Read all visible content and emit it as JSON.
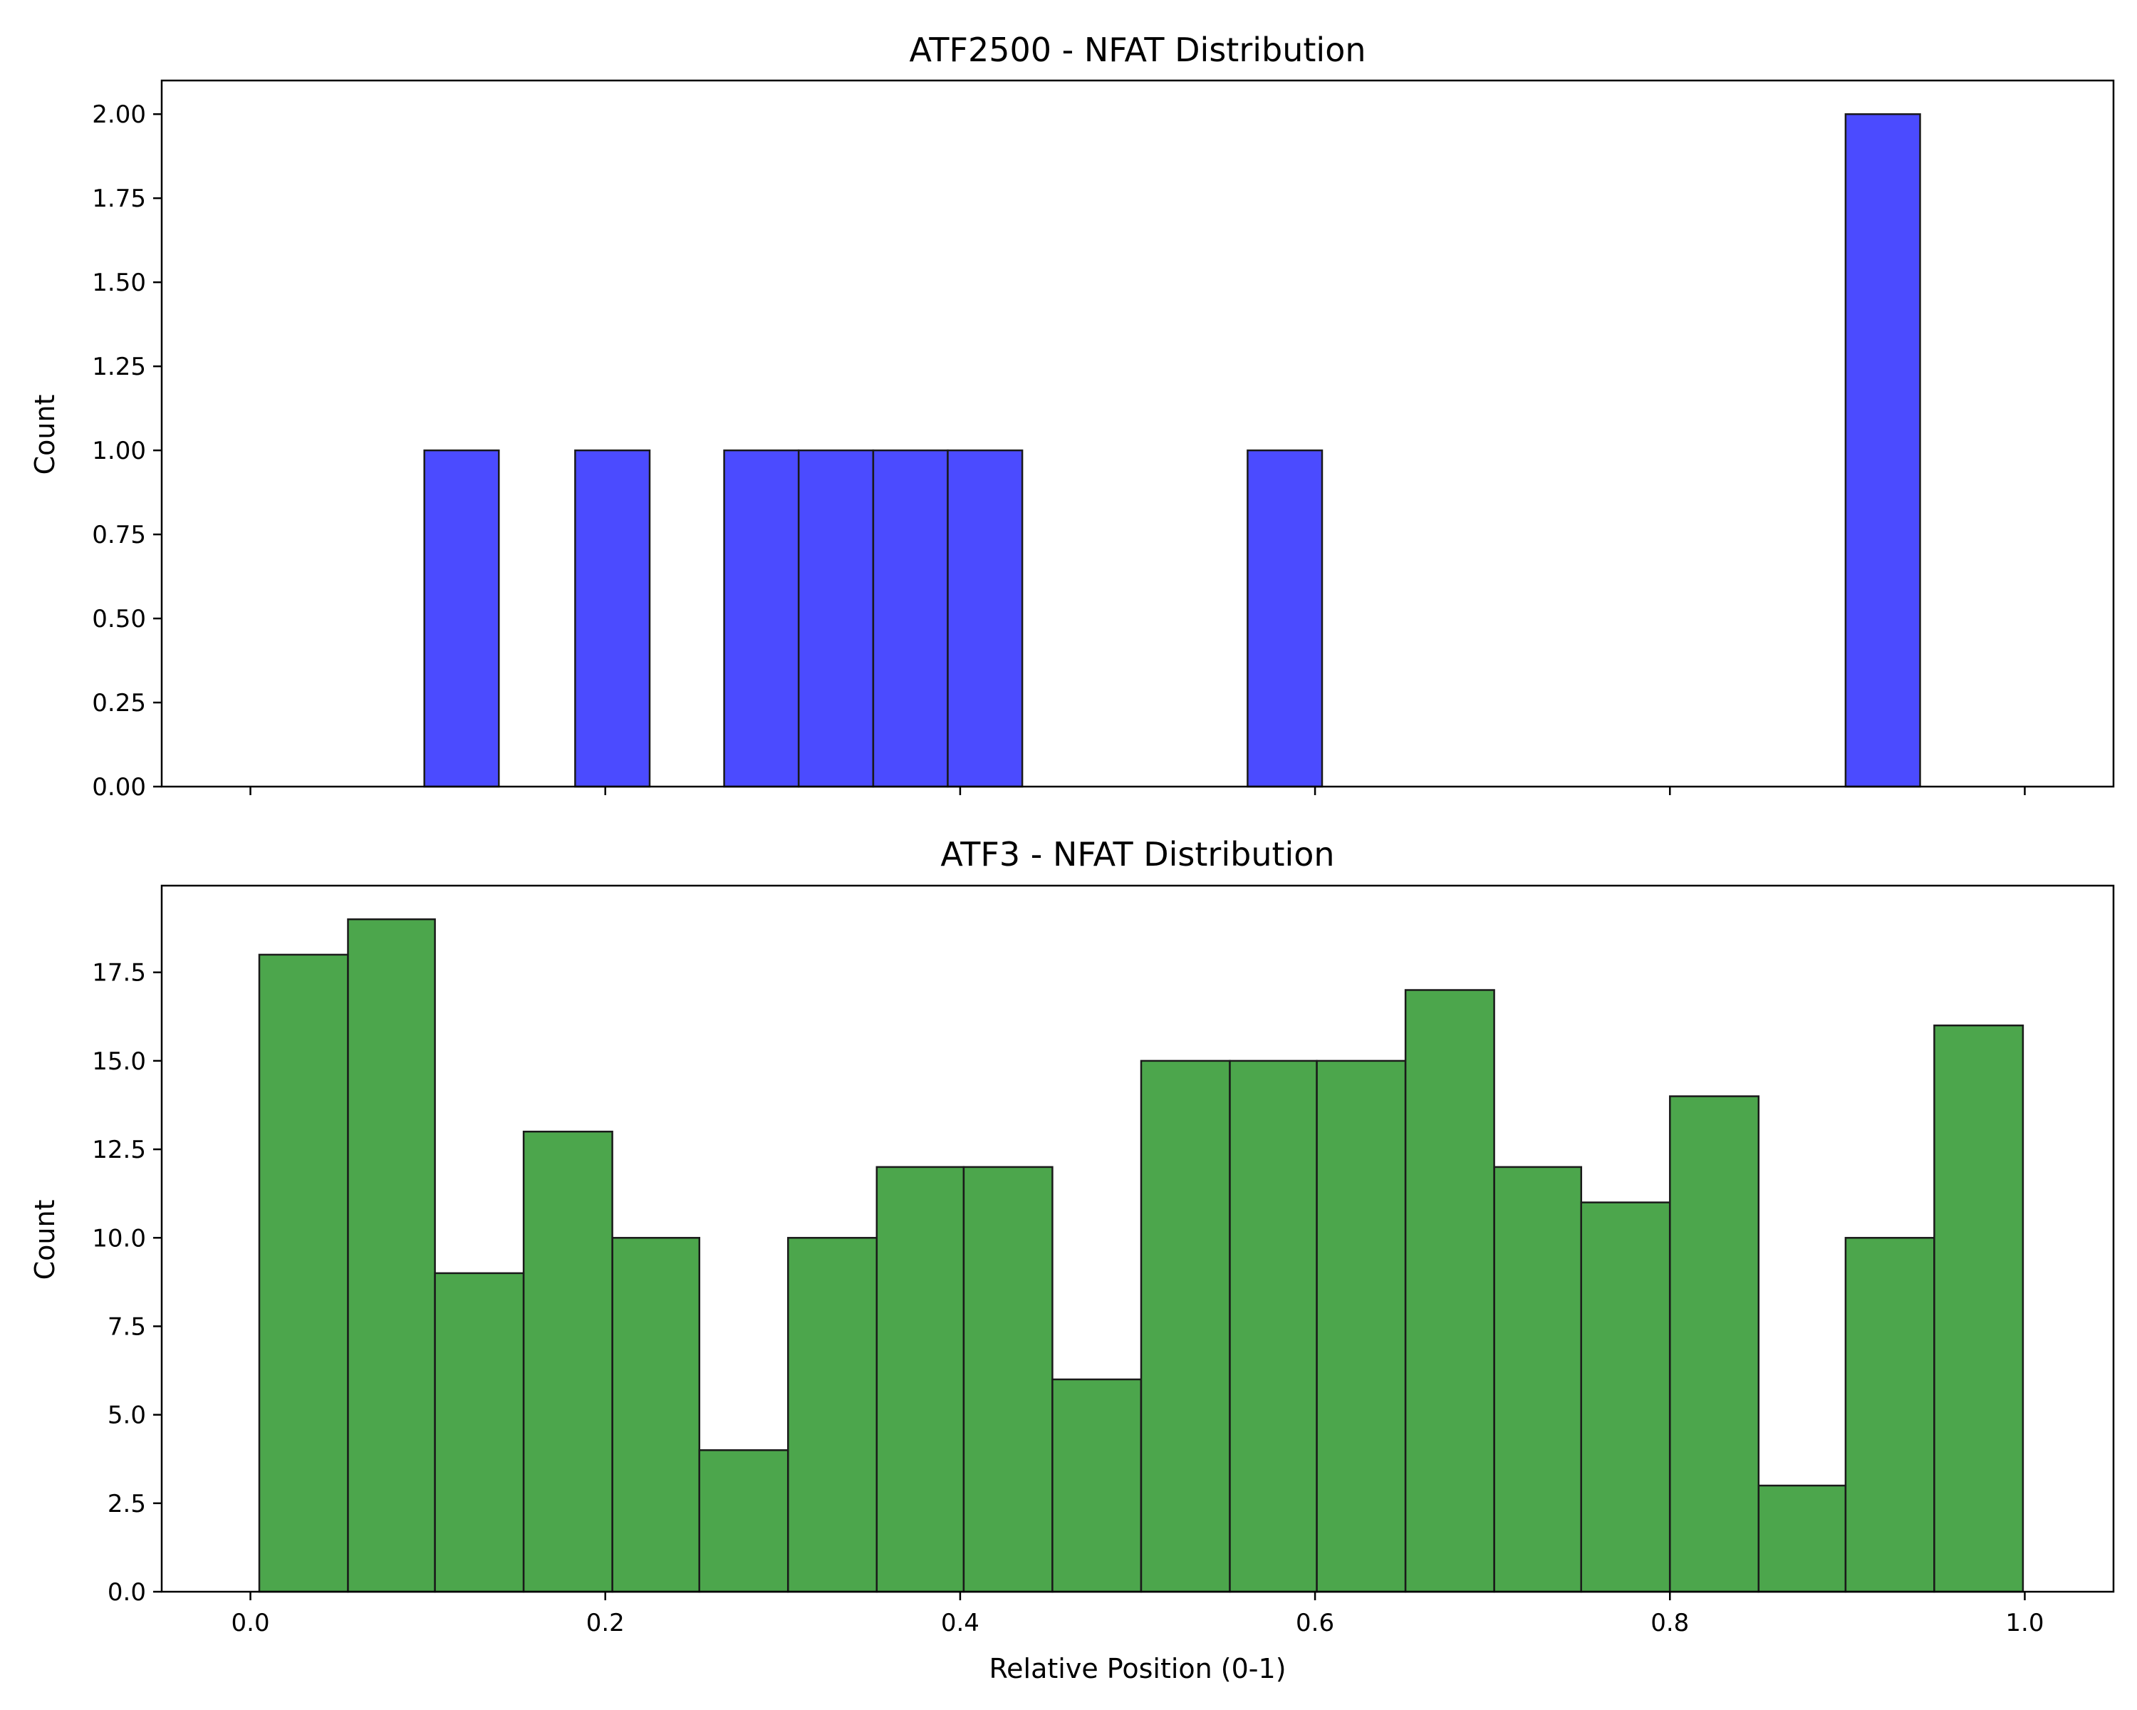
{
  "chart_data": [
    {
      "type": "bar",
      "title": "ATF2500 - NFAT Distribution",
      "xlabel": "",
      "ylabel": "Count",
      "xlim": [
        -0.05,
        1.05
      ],
      "ylim": [
        0,
        2.1
      ],
      "grid": false,
      "xticks": [
        0.0,
        0.2,
        0.4,
        0.6,
        0.8,
        1.0
      ],
      "xtick_labels_visible": false,
      "yticks": [
        0.0,
        0.25,
        0.5,
        0.75,
        1.0,
        1.25,
        1.5,
        1.75,
        2.0
      ],
      "ytick_labels": [
        "0.00",
        "0.25",
        "0.50",
        "0.75",
        "1.00",
        "1.25",
        "1.50",
        "1.75",
        "2.00"
      ],
      "color": "#4b4bff",
      "edge_color": "#1a1a1a",
      "bins": [
        {
          "x0": 0.098,
          "x1": 0.14,
          "count": 1
        },
        {
          "x0": 0.14,
          "x1": 0.183,
          "count": 0
        },
        {
          "x0": 0.183,
          "x1": 0.225,
          "count": 1
        },
        {
          "x0": 0.225,
          "x1": 0.267,
          "count": 0
        },
        {
          "x0": 0.267,
          "x1": 0.309,
          "count": 1
        },
        {
          "x0": 0.309,
          "x1": 0.351,
          "count": 1
        },
        {
          "x0": 0.351,
          "x1": 0.393,
          "count": 1
        },
        {
          "x0": 0.393,
          "x1": 0.435,
          "count": 1
        },
        {
          "x0": 0.435,
          "x1": 0.478,
          "count": 0
        },
        {
          "x0": 0.478,
          "x1": 0.52,
          "count": 0
        },
        {
          "x0": 0.52,
          "x1": 0.562,
          "count": 0
        },
        {
          "x0": 0.562,
          "x1": 0.604,
          "count": 1
        },
        {
          "x0": 0.604,
          "x1": 0.646,
          "count": 0
        },
        {
          "x0": 0.646,
          "x1": 0.688,
          "count": 0
        },
        {
          "x0": 0.688,
          "x1": 0.731,
          "count": 0
        },
        {
          "x0": 0.731,
          "x1": 0.773,
          "count": 0
        },
        {
          "x0": 0.773,
          "x1": 0.815,
          "count": 0
        },
        {
          "x0": 0.815,
          "x1": 0.857,
          "count": 0
        },
        {
          "x0": 0.857,
          "x1": 0.899,
          "count": 0
        },
        {
          "x0": 0.899,
          "x1": 0.941,
          "count": 2
        }
      ]
    },
    {
      "type": "bar",
      "title": "ATF3 - NFAT Distribution",
      "xlabel": "Relative Position (0-1)",
      "ylabel": "Count",
      "xlim": [
        -0.05,
        1.05
      ],
      "ylim": [
        0,
        19.95
      ],
      "grid": false,
      "xticks": [
        0.0,
        0.2,
        0.4,
        0.6,
        0.8,
        1.0
      ],
      "xtick_labels": [
        "0.0",
        "0.2",
        "0.4",
        "0.6",
        "0.8",
        "1.0"
      ],
      "yticks": [
        0.0,
        2.5,
        5.0,
        7.5,
        10.0,
        12.5,
        15.0,
        17.5
      ],
      "ytick_labels": [
        "0.0",
        "2.5",
        "5.0",
        "7.5",
        "10.0",
        "12.5",
        "15.0",
        "17.5"
      ],
      "color": "#4ca64c",
      "edge_color": "#1a1a1a",
      "bins": [
        {
          "x0": 0.005,
          "x1": 0.055,
          "count": 18
        },
        {
          "x0": 0.055,
          "x1": 0.104,
          "count": 19
        },
        {
          "x0": 0.104,
          "x1": 0.154,
          "count": 9
        },
        {
          "x0": 0.154,
          "x1": 0.204,
          "count": 13
        },
        {
          "x0": 0.204,
          "x1": 0.253,
          "count": 10
        },
        {
          "x0": 0.253,
          "x1": 0.303,
          "count": 4
        },
        {
          "x0": 0.303,
          "x1": 0.353,
          "count": 10
        },
        {
          "x0": 0.353,
          "x1": 0.402,
          "count": 12
        },
        {
          "x0": 0.402,
          "x1": 0.452,
          "count": 12
        },
        {
          "x0": 0.452,
          "x1": 0.502,
          "count": 6
        },
        {
          "x0": 0.502,
          "x1": 0.552,
          "count": 15
        },
        {
          "x0": 0.552,
          "x1": 0.601,
          "count": 15
        },
        {
          "x0": 0.601,
          "x1": 0.651,
          "count": 15
        },
        {
          "x0": 0.651,
          "x1": 0.701,
          "count": 17
        },
        {
          "x0": 0.701,
          "x1": 0.75,
          "count": 12
        },
        {
          "x0": 0.75,
          "x1": 0.8,
          "count": 11
        },
        {
          "x0": 0.8,
          "x1": 0.85,
          "count": 14
        },
        {
          "x0": 0.85,
          "x1": 0.899,
          "count": 3
        },
        {
          "x0": 0.899,
          "x1": 0.949,
          "count": 10
        },
        {
          "x0": 0.949,
          "x1": 0.999,
          "count": 16
        }
      ]
    }
  ]
}
